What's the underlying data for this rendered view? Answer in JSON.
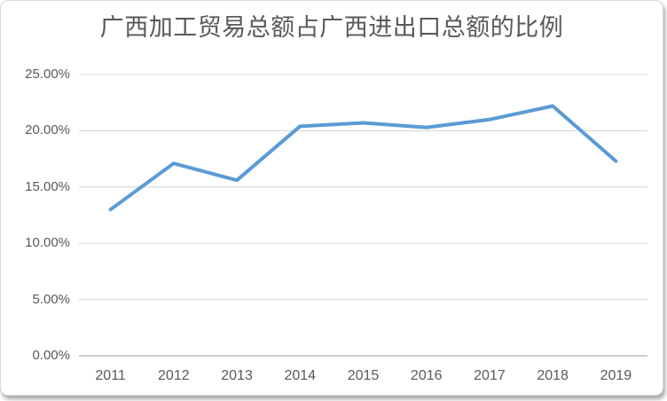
{
  "chart_data": {
    "type": "line",
    "title": "广西加工贸易总额占广西进出口总额的比例",
    "categories": [
      "2011",
      "2012",
      "2013",
      "2014",
      "2015",
      "2016",
      "2017",
      "2018",
      "2019"
    ],
    "values": [
      13.0,
      17.1,
      15.6,
      20.4,
      20.7,
      20.3,
      21.0,
      22.2,
      17.3
    ],
    "value_unit": "%",
    "xlabel": "",
    "ylabel": "",
    "ylim": [
      0,
      25
    ],
    "ytick_step": 5,
    "ytick_labels": [
      "0.00%",
      "5.00%",
      "10.00%",
      "15.00%",
      "20.00%",
      "25.00%"
    ],
    "grid": "horizontal",
    "legend": "none",
    "colors": {
      "line": "#5B9BD5",
      "gridline": "#D9D9D9",
      "axis_line": "#BFBFBF",
      "text": "#595959",
      "background": "#FFFFFF",
      "card_border": "#D9D9D9"
    }
  }
}
